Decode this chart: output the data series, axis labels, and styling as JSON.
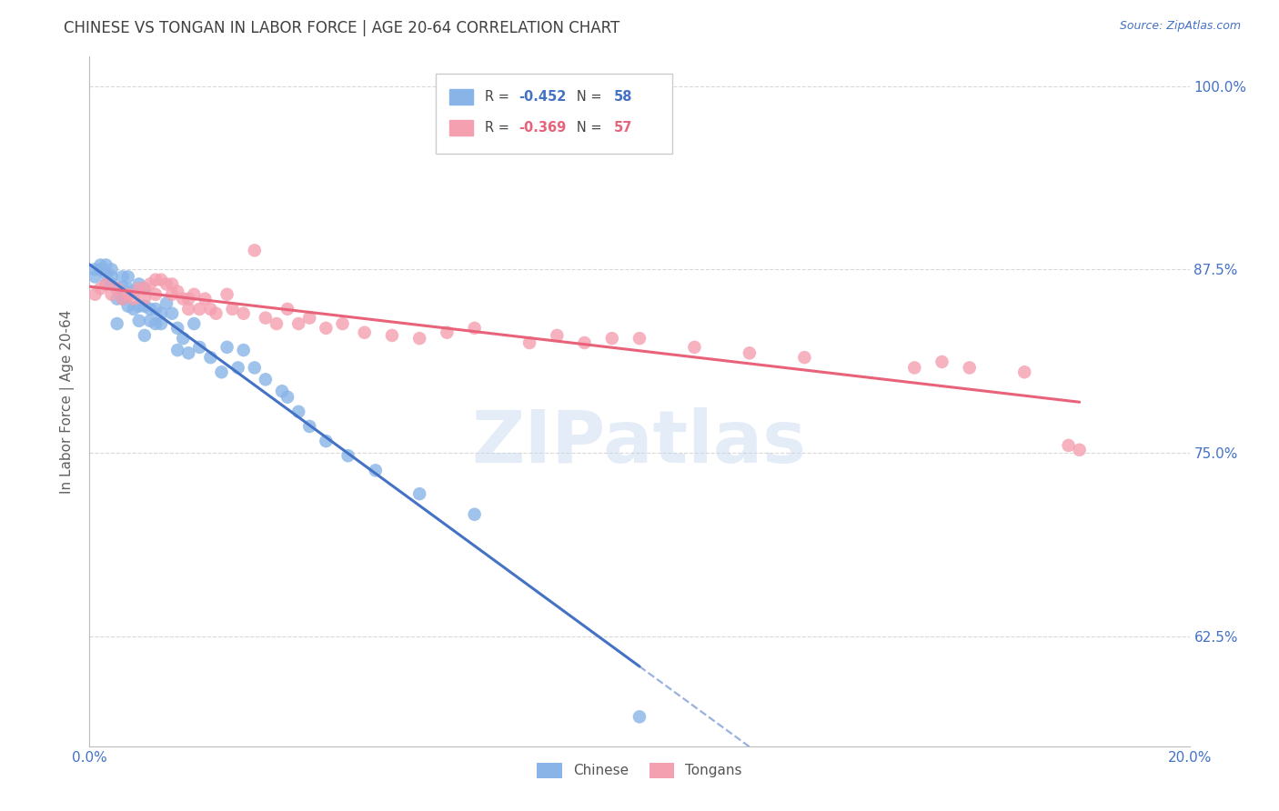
{
  "title": "CHINESE VS TONGAN IN LABOR FORCE | AGE 20-64 CORRELATION CHART",
  "source": "Source: ZipAtlas.com",
  "ylabel": "In Labor Force | Age 20-64",
  "xlim": [
    0.0,
    0.2
  ],
  "ylim": [
    0.55,
    1.02
  ],
  "xtick_vals": [
    0.0,
    0.05,
    0.1,
    0.15,
    0.2
  ],
  "xtick_labels": [
    "0.0%",
    "",
    "",
    "",
    "20.0%"
  ],
  "ytick_vals": [
    0.625,
    0.75,
    0.875,
    1.0
  ],
  "ytick_labels": [
    "62.5%",
    "75.0%",
    "87.5%",
    "100.0%"
  ],
  "watermark": "ZIPatlas",
  "chinese_color": "#89b4e8",
  "tongan_color": "#f4a0b0",
  "chinese_R": -0.452,
  "chinese_N": 58,
  "tongan_R": -0.369,
  "tongan_N": 57,
  "chinese_line_color": "#4472c4",
  "tongan_line_color": "#e8627a",
  "chinese_scatter_x": [
    0.001,
    0.001,
    0.002,
    0.002,
    0.003,
    0.003,
    0.003,
    0.004,
    0.004,
    0.004,
    0.005,
    0.005,
    0.005,
    0.006,
    0.006,
    0.006,
    0.007,
    0.007,
    0.007,
    0.008,
    0.008,
    0.009,
    0.009,
    0.009,
    0.01,
    0.01,
    0.01,
    0.011,
    0.011,
    0.012,
    0.012,
    0.013,
    0.013,
    0.014,
    0.015,
    0.016,
    0.016,
    0.017,
    0.018,
    0.019,
    0.02,
    0.022,
    0.024,
    0.025,
    0.027,
    0.028,
    0.03,
    0.032,
    0.035,
    0.036,
    0.038,
    0.04,
    0.043,
    0.047,
    0.052,
    0.06,
    0.07,
    0.1
  ],
  "chinese_scatter_y": [
    0.87,
    0.875,
    0.875,
    0.878,
    0.872,
    0.865,
    0.878,
    0.87,
    0.875,
    0.865,
    0.838,
    0.855,
    0.862,
    0.87,
    0.863,
    0.855,
    0.87,
    0.862,
    0.85,
    0.86,
    0.848,
    0.865,
    0.85,
    0.84,
    0.862,
    0.85,
    0.83,
    0.848,
    0.84,
    0.848,
    0.838,
    0.845,
    0.838,
    0.852,
    0.845,
    0.835,
    0.82,
    0.828,
    0.818,
    0.838,
    0.822,
    0.815,
    0.805,
    0.822,
    0.808,
    0.82,
    0.808,
    0.8,
    0.792,
    0.788,
    0.778,
    0.768,
    0.758,
    0.748,
    0.738,
    0.722,
    0.708,
    0.57
  ],
  "tongan_scatter_x": [
    0.001,
    0.002,
    0.003,
    0.004,
    0.005,
    0.006,
    0.007,
    0.008,
    0.009,
    0.01,
    0.01,
    0.011,
    0.012,
    0.012,
    0.013,
    0.014,
    0.015,
    0.015,
    0.016,
    0.017,
    0.018,
    0.018,
    0.019,
    0.02,
    0.021,
    0.022,
    0.023,
    0.025,
    0.026,
    0.028,
    0.03,
    0.032,
    0.034,
    0.036,
    0.038,
    0.04,
    0.043,
    0.046,
    0.05,
    0.055,
    0.06,
    0.065,
    0.07,
    0.08,
    0.085,
    0.09,
    0.095,
    0.1,
    0.11,
    0.12,
    0.13,
    0.15,
    0.155,
    0.16,
    0.17,
    0.178,
    0.18
  ],
  "tongan_scatter_y": [
    0.858,
    0.862,
    0.865,
    0.858,
    0.862,
    0.855,
    0.858,
    0.855,
    0.862,
    0.862,
    0.855,
    0.865,
    0.868,
    0.858,
    0.868,
    0.865,
    0.865,
    0.858,
    0.86,
    0.855,
    0.848,
    0.855,
    0.858,
    0.848,
    0.855,
    0.848,
    0.845,
    0.858,
    0.848,
    0.845,
    0.888,
    0.842,
    0.838,
    0.848,
    0.838,
    0.842,
    0.835,
    0.838,
    0.832,
    0.83,
    0.828,
    0.832,
    0.835,
    0.825,
    0.83,
    0.825,
    0.828,
    0.828,
    0.822,
    0.818,
    0.815,
    0.808,
    0.812,
    0.808,
    0.805,
    0.755,
    0.752
  ],
  "bg_color": "#ffffff",
  "grid_color": "#d8d8d8",
  "axis_label_color": "#606060",
  "tick_label_color": "#4472c4",
  "title_color": "#404040",
  "title_fontsize": 12,
  "source_fontsize": 9,
  "legend_R_color_chinese": "#4472c4",
  "legend_R_color_tongan": "#e8627a",
  "legend_N_color": "#4472c4"
}
